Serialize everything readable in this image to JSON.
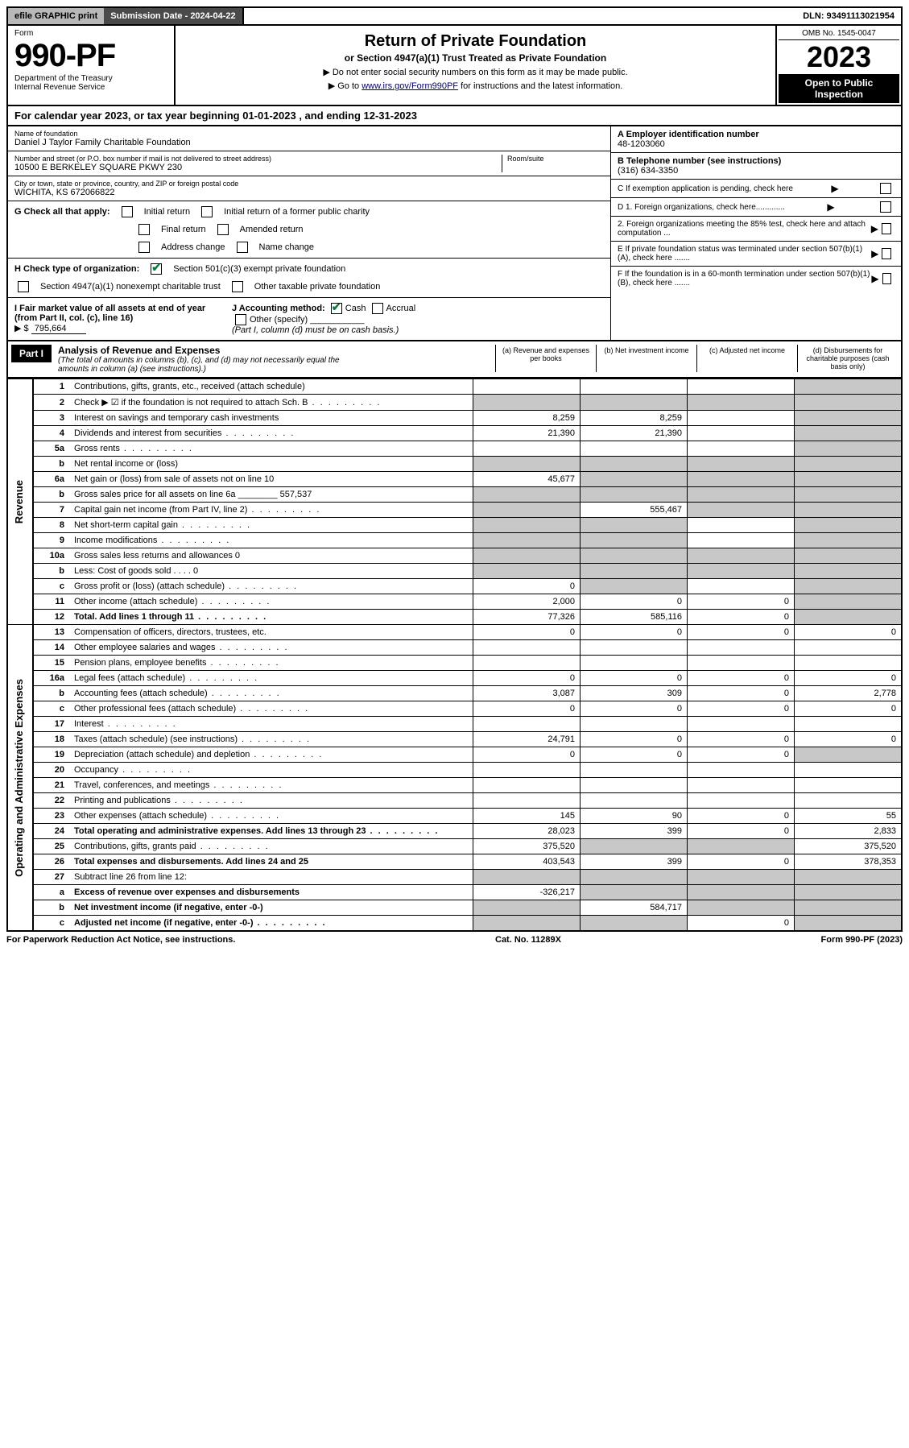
{
  "topbar": {
    "efile": "efile GRAPHIC print",
    "subdate_label": "Submission Date - 2024-04-22",
    "dln_label": "DLN: 93491113021954"
  },
  "header": {
    "form_label": "Form",
    "form_no": "990-PF",
    "dept": "Department of the Treasury",
    "irs": "Internal Revenue Service",
    "title": "Return of Private Foundation",
    "subtitle": "or Section 4947(a)(1) Trust Treated as Private Foundation",
    "note1": "▶ Do not enter social security numbers on this form as it may be made public.",
    "note2_pre": "▶ Go to ",
    "note2_link": "www.irs.gov/Form990PF",
    "note2_post": " for instructions and the latest information.",
    "omb": "OMB No. 1545-0047",
    "year": "2023",
    "open": "Open to Public Inspection"
  },
  "calyear": "For calendar year 2023, or tax year beginning 01-01-2023           , and ending 12-31-2023",
  "info": {
    "name_lbl": "Name of foundation",
    "name": "Daniel J Taylor Family Charitable Foundation",
    "addr_lbl": "Number and street (or P.O. box number if mail is not delivered to street address)",
    "addr": "10500 E BERKELEY SQUARE PKWY 230",
    "room_lbl": "Room/suite",
    "city_lbl": "City or town, state or province, country, and ZIP or foreign postal code",
    "city": "WICHITA, KS  672066822",
    "ein_lbl": "A Employer identification number",
    "ein": "48-1203060",
    "tel_lbl": "B Telephone number (see instructions)",
    "tel": "(316) 634-3350",
    "c_lbl": "C If exemption application is pending, check here",
    "d1": "D 1. Foreign organizations, check here.............",
    "d2": "2. Foreign organizations meeting the 85% test, check here and attach computation ...",
    "e_lbl": "E If private foundation status was terminated under section 507(b)(1)(A), check here .......",
    "f_lbl": "F If the foundation is in a 60-month termination under section 507(b)(1)(B), check here .......",
    "g_lbl": "G Check all that apply:",
    "g_opts": [
      "Initial return",
      "Initial return of a former public charity",
      "Final return",
      "Amended return",
      "Address change",
      "Name change"
    ],
    "h_lbl": "H Check type of organization:",
    "h1": "Section 501(c)(3) exempt private foundation",
    "h2": "Section 4947(a)(1) nonexempt charitable trust",
    "h3": "Other taxable private foundation",
    "i_lbl": "I Fair market value of all assets at end of year (from Part II, col. (c), line 16)",
    "i_val": "795,664",
    "j_lbl": "J Accounting method:",
    "j_cash": "Cash",
    "j_accrual": "Accrual",
    "j_other": "Other (specify)",
    "j_note": "(Part I, column (d) must be on cash basis.)"
  },
  "part1": {
    "label": "Part I",
    "title": "Analysis of Revenue and Expenses",
    "subtitle": "(The total of amounts in columns (b), (c), and (d) may not necessarily equal the amounts in column (a) (see instructions).)",
    "col_a": "(a) Revenue and expenses per books",
    "col_b": "(b) Net investment income",
    "col_c": "(c) Adjusted net income",
    "col_d": "(d) Disbursements for charitable purposes (cash basis only)"
  },
  "sections": {
    "revenue": "Revenue",
    "opex": "Operating and Administrative Expenses"
  },
  "rows": [
    {
      "n": "1",
      "d": "Contributions, gifts, grants, etc., received (attach schedule)",
      "a": "",
      "b": "",
      "c": "",
      "dv": "",
      "ds": true
    },
    {
      "n": "2",
      "d": "Check ▶ ☑ if the foundation is not required to attach Sch. B",
      "a": "",
      "b": "",
      "c": "",
      "dv": "",
      "as": true,
      "bs": true,
      "cs": true,
      "ds": true,
      "dots": true
    },
    {
      "n": "3",
      "d": "Interest on savings and temporary cash investments",
      "a": "8,259",
      "b": "8,259",
      "c": "",
      "dv": "",
      "ds": true
    },
    {
      "n": "4",
      "d": "Dividends and interest from securities",
      "a": "21,390",
      "b": "21,390",
      "c": "",
      "dv": "",
      "ds": true,
      "dots": true
    },
    {
      "n": "5a",
      "d": "Gross rents",
      "a": "",
      "b": "",
      "c": "",
      "dv": "",
      "ds": true,
      "dots": true
    },
    {
      "n": "b",
      "d": "Net rental income or (loss)",
      "a": "",
      "b": "",
      "c": "",
      "dv": "",
      "as": true,
      "bs": true,
      "cs": true,
      "ds": true
    },
    {
      "n": "6a",
      "d": "Net gain or (loss) from sale of assets not on line 10",
      "a": "45,677",
      "b": "",
      "c": "",
      "dv": "",
      "bs": true,
      "cs": true,
      "ds": true
    },
    {
      "n": "b",
      "d": "Gross sales price for all assets on line 6a ________ 557,537",
      "a": "",
      "b": "",
      "c": "",
      "dv": "",
      "as": true,
      "bs": true,
      "cs": true,
      "ds": true
    },
    {
      "n": "7",
      "d": "Capital gain net income (from Part IV, line 2)",
      "a": "",
      "b": "555,467",
      "c": "",
      "dv": "",
      "as": true,
      "cs": true,
      "ds": true,
      "dots": true
    },
    {
      "n": "8",
      "d": "Net short-term capital gain",
      "a": "",
      "b": "",
      "c": "",
      "dv": "",
      "as": true,
      "bs": true,
      "ds": true,
      "dots": true
    },
    {
      "n": "9",
      "d": "Income modifications",
      "a": "",
      "b": "",
      "c": "",
      "dv": "",
      "as": true,
      "bs": true,
      "ds": true,
      "dots": true
    },
    {
      "n": "10a",
      "d": "Gross sales less returns and allowances                      0",
      "a": "",
      "b": "",
      "c": "",
      "dv": "",
      "as": true,
      "bs": true,
      "cs": true,
      "ds": true
    },
    {
      "n": "b",
      "d": "Less: Cost of goods sold     .   .   .   .                           0",
      "a": "",
      "b": "",
      "c": "",
      "dv": "",
      "as": true,
      "bs": true,
      "cs": true,
      "ds": true
    },
    {
      "n": "c",
      "d": "Gross profit or (loss) (attach schedule)",
      "a": "0",
      "b": "",
      "c": "",
      "dv": "",
      "bs": true,
      "ds": true,
      "dots": true
    },
    {
      "n": "11",
      "d": "Other income (attach schedule)",
      "a": "2,000",
      "b": "0",
      "c": "0",
      "dv": "",
      "ds": true,
      "dots": true
    },
    {
      "n": "12",
      "d": "Total. Add lines 1 through 11",
      "a": "77,326",
      "b": "585,116",
      "c": "0",
      "dv": "",
      "ds": true,
      "bold": true,
      "dots": true
    }
  ],
  "rows2": [
    {
      "n": "13",
      "d": "Compensation of officers, directors, trustees, etc.",
      "a": "0",
      "b": "0",
      "c": "0",
      "dv": "0"
    },
    {
      "n": "14",
      "d": "Other employee salaries and wages",
      "a": "",
      "b": "",
      "c": "",
      "dv": "",
      "dots": true
    },
    {
      "n": "15",
      "d": "Pension plans, employee benefits",
      "a": "",
      "b": "",
      "c": "",
      "dv": "",
      "dots": true
    },
    {
      "n": "16a",
      "d": "Legal fees (attach schedule)",
      "a": "0",
      "b": "0",
      "c": "0",
      "dv": "0",
      "dots": true
    },
    {
      "n": "b",
      "d": "Accounting fees (attach schedule)",
      "a": "3,087",
      "b": "309",
      "c": "0",
      "dv": "2,778",
      "dots": true
    },
    {
      "n": "c",
      "d": "Other professional fees (attach schedule)",
      "a": "0",
      "b": "0",
      "c": "0",
      "dv": "0",
      "dots": true
    },
    {
      "n": "17",
      "d": "Interest",
      "a": "",
      "b": "",
      "c": "",
      "dv": "",
      "dots": true
    },
    {
      "n": "18",
      "d": "Taxes (attach schedule) (see instructions)",
      "a": "24,791",
      "b": "0",
      "c": "0",
      "dv": "0",
      "dots": true
    },
    {
      "n": "19",
      "d": "Depreciation (attach schedule) and depletion",
      "a": "0",
      "b": "0",
      "c": "0",
      "dv": "",
      "ds": true,
      "dots": true
    },
    {
      "n": "20",
      "d": "Occupancy",
      "a": "",
      "b": "",
      "c": "",
      "dv": "",
      "dots": true
    },
    {
      "n": "21",
      "d": "Travel, conferences, and meetings",
      "a": "",
      "b": "",
      "c": "",
      "dv": "",
      "dots": true
    },
    {
      "n": "22",
      "d": "Printing and publications",
      "a": "",
      "b": "",
      "c": "",
      "dv": "",
      "dots": true
    },
    {
      "n": "23",
      "d": "Other expenses (attach schedule)",
      "a": "145",
      "b": "90",
      "c": "0",
      "dv": "55",
      "dots": true
    },
    {
      "n": "24",
      "d": "Total operating and administrative expenses. Add lines 13 through 23",
      "a": "28,023",
      "b": "399",
      "c": "0",
      "dv": "2,833",
      "bold": true,
      "dots": true
    },
    {
      "n": "25",
      "d": "Contributions, gifts, grants paid",
      "a": "375,520",
      "b": "",
      "c": "",
      "dv": "375,520",
      "bs": true,
      "cs": true,
      "dots": true
    },
    {
      "n": "26",
      "d": "Total expenses and disbursements. Add lines 24 and 25",
      "a": "403,543",
      "b": "399",
      "c": "0",
      "dv": "378,353",
      "bold": true
    },
    {
      "n": "27",
      "d": "Subtract line 26 from line 12:",
      "a": "",
      "b": "",
      "c": "",
      "dv": "",
      "as": true,
      "bs": true,
      "cs": true,
      "ds": true
    },
    {
      "n": "a",
      "d": "Excess of revenue over expenses and disbursements",
      "a": "-326,217",
      "b": "",
      "c": "",
      "dv": "",
      "bs": true,
      "cs": true,
      "ds": true,
      "bold": true
    },
    {
      "n": "b",
      "d": "Net investment income (if negative, enter -0-)",
      "a": "",
      "b": "584,717",
      "c": "",
      "dv": "",
      "as": true,
      "cs": true,
      "ds": true,
      "bold": true
    },
    {
      "n": "c",
      "d": "Adjusted net income (if negative, enter -0-)",
      "a": "",
      "b": "",
      "c": "0",
      "dv": "",
      "as": true,
      "bs": true,
      "ds": true,
      "bold": true,
      "dots": true
    }
  ],
  "footer": {
    "left": "For Paperwork Reduction Act Notice, see instructions.",
    "mid": "Cat. No. 11289X",
    "right": "Form 990-PF (2023)"
  }
}
